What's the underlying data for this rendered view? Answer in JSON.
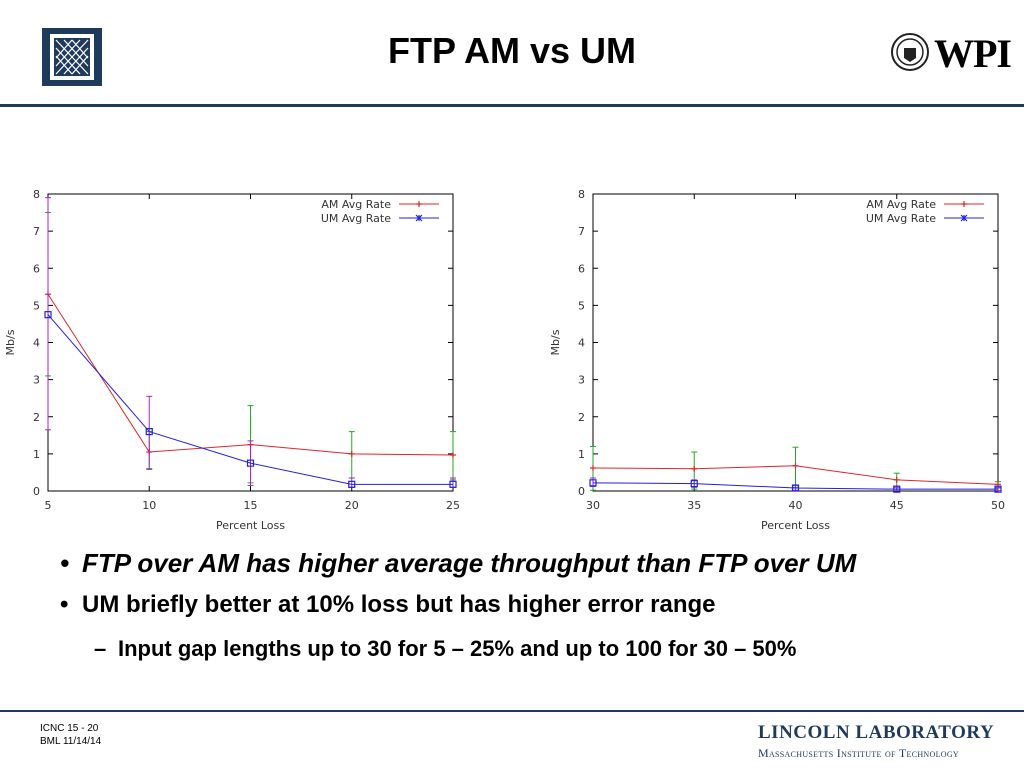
{
  "slide": {
    "title": "FTP AM vs UM",
    "right_logo_text": "WPI",
    "bullets": [
      "FTP over AM has higher average throughput than FTP over UM",
      "UM briefly better at 10% loss but has higher error range"
    ],
    "sub_bullet": "Input gap lengths up to 30 for 5 – 25% and up to 100 for 30 – 50%",
    "bullet_symbol": "•",
    "sub_bullet_symbol": "–",
    "footer_left": [
      "ICNC 15 - 20",
      "BML  11/14/14"
    ],
    "footer_right_line1": "LINCOLN LABORATORY",
    "footer_right_line2": "Massachusetts Institute of Technology"
  },
  "colors": {
    "am": "#e0262a",
    "um": "#2222dd",
    "am_err": "#22aa22",
    "um_err": "#aa22cc",
    "brand": "#1f3a5a"
  },
  "chart_data": [
    {
      "type": "line",
      "xlabel": "Percent Loss",
      "ylabel": "Mb/s",
      "xlim": [
        5,
        25
      ],
      "ylim": [
        0,
        8
      ],
      "xticks": [
        5,
        10,
        15,
        20,
        25
      ],
      "yticks": [
        0,
        1,
        2,
        3,
        4,
        5,
        6,
        7,
        8
      ],
      "grid": false,
      "legend": "top-right",
      "series": [
        {
          "name": "AM Avg Rate",
          "x": [
            5,
            10,
            15,
            20,
            25
          ],
          "y": [
            5.3,
            1.05,
            1.25,
            1.0,
            0.97
          ],
          "err_low": [
            3.1,
            0.58,
            0.22,
            0.35,
            0.3
          ],
          "err_high": [
            7.5,
            1.6,
            2.3,
            1.6,
            1.6
          ]
        },
        {
          "name": "UM Avg Rate",
          "x": [
            5,
            10,
            15,
            20,
            25
          ],
          "y": [
            4.75,
            1.6,
            0.75,
            0.18,
            0.18
          ],
          "err_low": [
            1.65,
            0.6,
            0.15,
            0.1,
            0.1
          ],
          "err_high": [
            7.9,
            2.55,
            1.35,
            0.35,
            0.35
          ]
        }
      ]
    },
    {
      "type": "line",
      "xlabel": "Percent Loss",
      "ylabel": "Mb/s",
      "xlim": [
        30,
        50
      ],
      "ylim": [
        0,
        8
      ],
      "xticks": [
        30,
        35,
        40,
        45,
        50
      ],
      "yticks": [
        0,
        1,
        2,
        3,
        4,
        5,
        6,
        7,
        8
      ],
      "grid": false,
      "legend": "top-right",
      "series": [
        {
          "name": "AM Avg Rate",
          "x": [
            30,
            35,
            40,
            45,
            50
          ],
          "y": [
            0.62,
            0.6,
            0.68,
            0.3,
            0.18
          ],
          "err_low": [
            0.02,
            0.05,
            0.1,
            0.05,
            0.08
          ],
          "err_high": [
            1.2,
            1.05,
            1.18,
            0.48,
            0.25
          ]
        },
        {
          "name": "UM Avg Rate",
          "x": [
            30,
            35,
            40,
            45,
            50
          ],
          "y": [
            0.22,
            0.2,
            0.08,
            0.05,
            0.05
          ],
          "err_low": [
            0.12,
            0.1,
            0.02,
            0.01,
            0.01
          ],
          "err_high": [
            0.35,
            0.3,
            0.15,
            0.1,
            0.1
          ]
        }
      ]
    }
  ]
}
